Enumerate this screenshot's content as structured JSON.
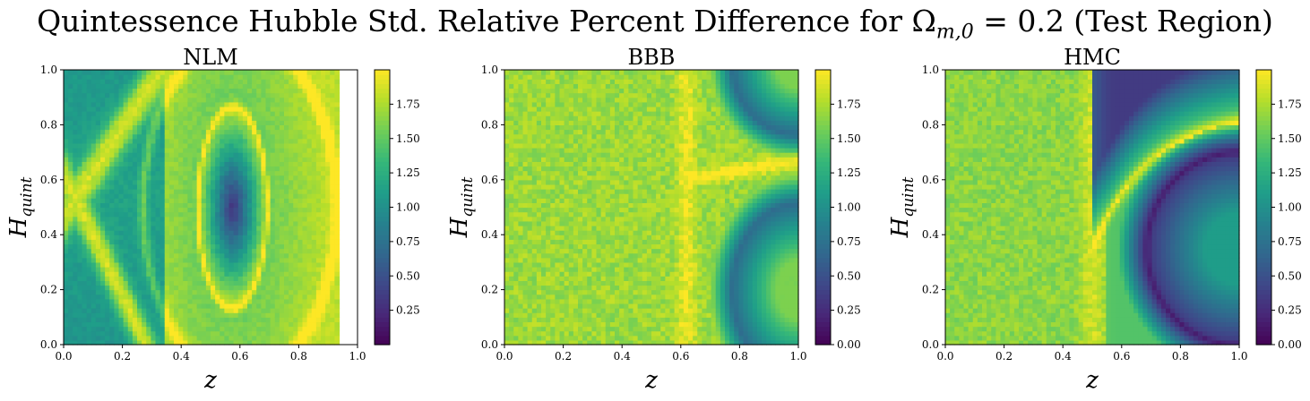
{
  "title": "Quintessence Hubble Std. Relative Percent Difference for Ω",
  "title_sub": "m,0",
  "title_tail": " = 0.2 (Test Region)",
  "colormap": {
    "name": "viridis",
    "stops": [
      "#440154",
      "#482878",
      "#3e4989",
      "#31688e",
      "#26828e",
      "#1f9e89",
      "#35b779",
      "#6ece58",
      "#b5de2b",
      "#fde725"
    ]
  },
  "chart_data": [
    {
      "type": "heatmap",
      "title": "NLM",
      "xlabel": "z",
      "ylabel": "H",
      "ylabel_sub": "quint",
      "xlim": [
        0,
        1
      ],
      "ylim": [
        0,
        1
      ],
      "xticks": [
        "0.0",
        "0.2",
        "0.4",
        "0.6",
        "0.8",
        "1.0"
      ],
      "yticks": [
        "0.0",
        "0.2",
        "0.4",
        "0.6",
        "0.8",
        "1.0"
      ],
      "colorbar": {
        "min": 0.0,
        "max": 2.0,
        "ticks": [
          "0.25",
          "0.50",
          "0.75",
          "1.00",
          "1.25",
          "1.50",
          "1.75"
        ],
        "tick_values": [
          0.25,
          0.5,
          0.75,
          1.0,
          1.25,
          1.5,
          1.75
        ]
      },
      "pattern": "ellipse-ring",
      "notes": "dark center near z≈0.57, H≈0.5; bright ring ellipse; bright X-shaped bands at low z; data absent for z>0.93"
    },
    {
      "type": "heatmap",
      "title": "BBB",
      "xlabel": "z",
      "ylabel": "H",
      "ylabel_sub": "quint",
      "xlim": [
        0,
        1
      ],
      "ylim": [
        0,
        1
      ],
      "xticks": [
        "0.0",
        "0.2",
        "0.4",
        "0.6",
        "0.8",
        "1.0"
      ],
      "yticks": [
        "0.0",
        "0.2",
        "0.4",
        "0.6",
        "0.8",
        "1.0"
      ],
      "colorbar": {
        "min": 0.0,
        "max": 2.0,
        "ticks": [
          "0.00",
          "0.25",
          "0.50",
          "0.75",
          "1.00",
          "1.25",
          "1.50",
          "1.75"
        ],
        "tick_values": [
          0.0,
          0.25,
          0.5,
          0.75,
          1.0,
          1.25,
          1.5,
          1.75
        ]
      },
      "pattern": "two-arcs",
      "notes": "mostly bright; dark arcs in upper right and lower right; bright band near z≈0.62"
    },
    {
      "type": "heatmap",
      "title": "HMC",
      "xlabel": "z",
      "ylabel": "H",
      "ylabel_sub": "quint",
      "xlim": [
        0,
        1
      ],
      "ylim": [
        0,
        1
      ],
      "xticks": [
        "0.0",
        "0.2",
        "0.4",
        "0.6",
        "0.8",
        "1.0"
      ],
      "yticks": [
        "0.0",
        "0.2",
        "0.4",
        "0.6",
        "0.8",
        "1.0"
      ],
      "colorbar": {
        "min": 0.0,
        "max": 2.0,
        "ticks": [
          "0.00",
          "0.25",
          "0.50",
          "0.75",
          "1.00",
          "1.25",
          "1.50",
          "1.75"
        ],
        "tick_values": [
          0.0,
          0.25,
          0.5,
          0.75,
          1.0,
          1.25,
          1.5,
          1.75
        ]
      },
      "pattern": "single-arc",
      "notes": "bright at low z; bright band curving from z≈0.5 to top right at H≈0.85; dark arc in lower right"
    }
  ]
}
